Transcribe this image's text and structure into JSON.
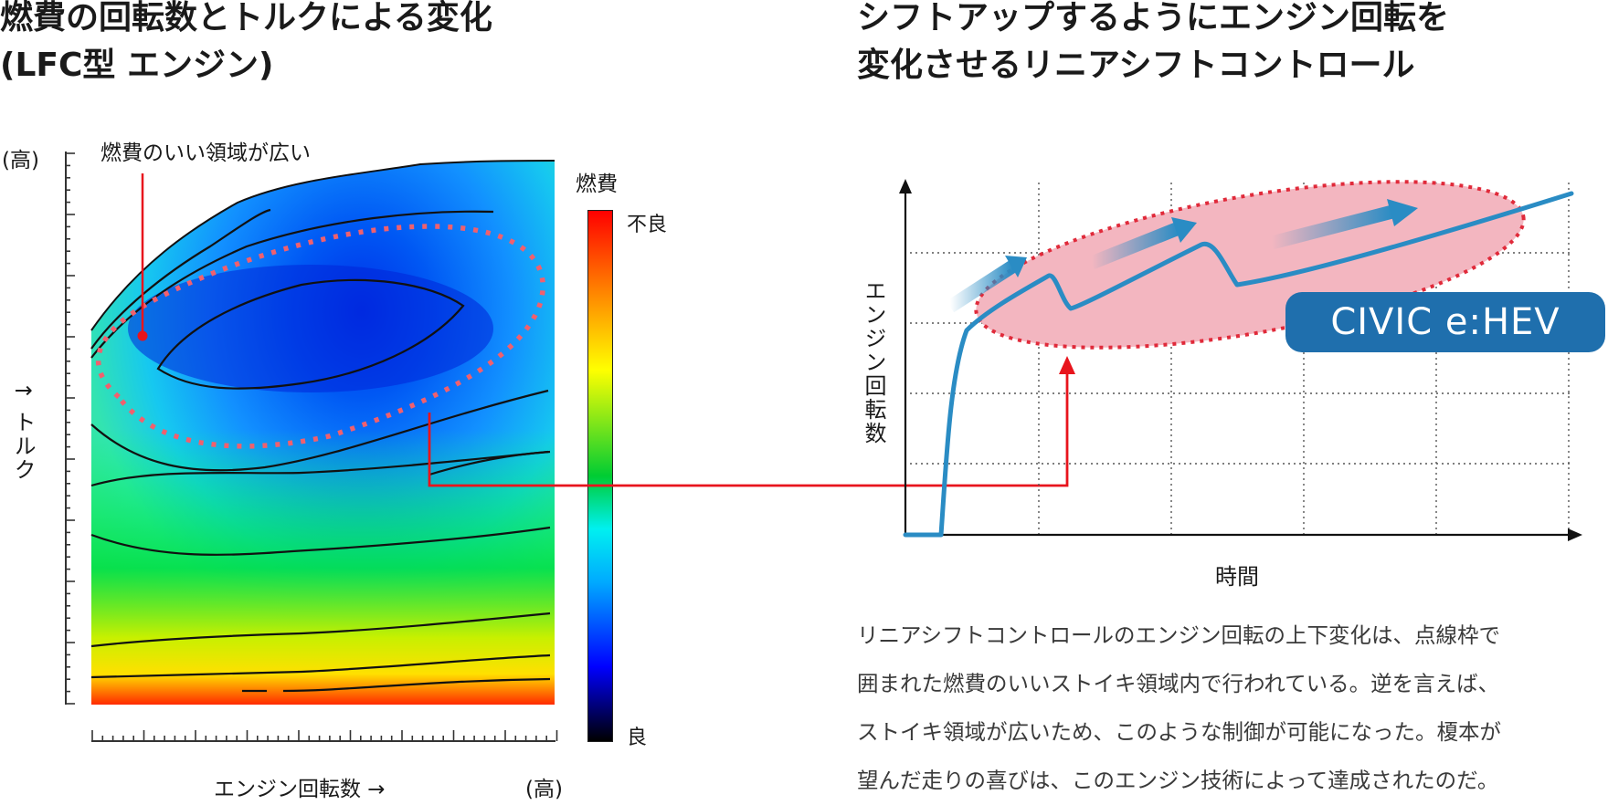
{
  "left_title": {
    "line1": "燃費の回転数とトルクによる変化",
    "line2": "(LFC型 エンジン)"
  },
  "right_title": {
    "line1": "シフトアップするようにエンジン回転を",
    "line2": "変化させるリニアシフトコントロール"
  },
  "map": {
    "y_high": "(高)",
    "y_label": "↑ トルク",
    "x_label": "エンジン回転数 →",
    "x_high": "(高)",
    "annotation": "燃費のいい領域が広い",
    "colorbar_title": "燃費",
    "colorbar_top": "不良",
    "colorbar_bottom": "良"
  },
  "graph": {
    "y_label": "エンジン回転数",
    "x_label": "時間",
    "badge": "CIVIC e:HEV"
  },
  "description": [
    "リニアシフトコントロールのエンジン回転の上下変化は、点線枠で",
    "囲まれた燃費のいいストイキ領域内で行われている。逆を言えば、",
    "ストイキ領域が広いため、このような制御が可能になった。榎本が",
    "望んだ走りの喜びは、このエンジン技術によって達成されたのだ。"
  ],
  "colors": {
    "accent_red": "#e8141c",
    "line_blue": "#2a8cc4",
    "badge_blue": "#1f6fad",
    "ellipse_fill": "#f3b6c0",
    "ellipse_border": "#e02a3a"
  }
}
